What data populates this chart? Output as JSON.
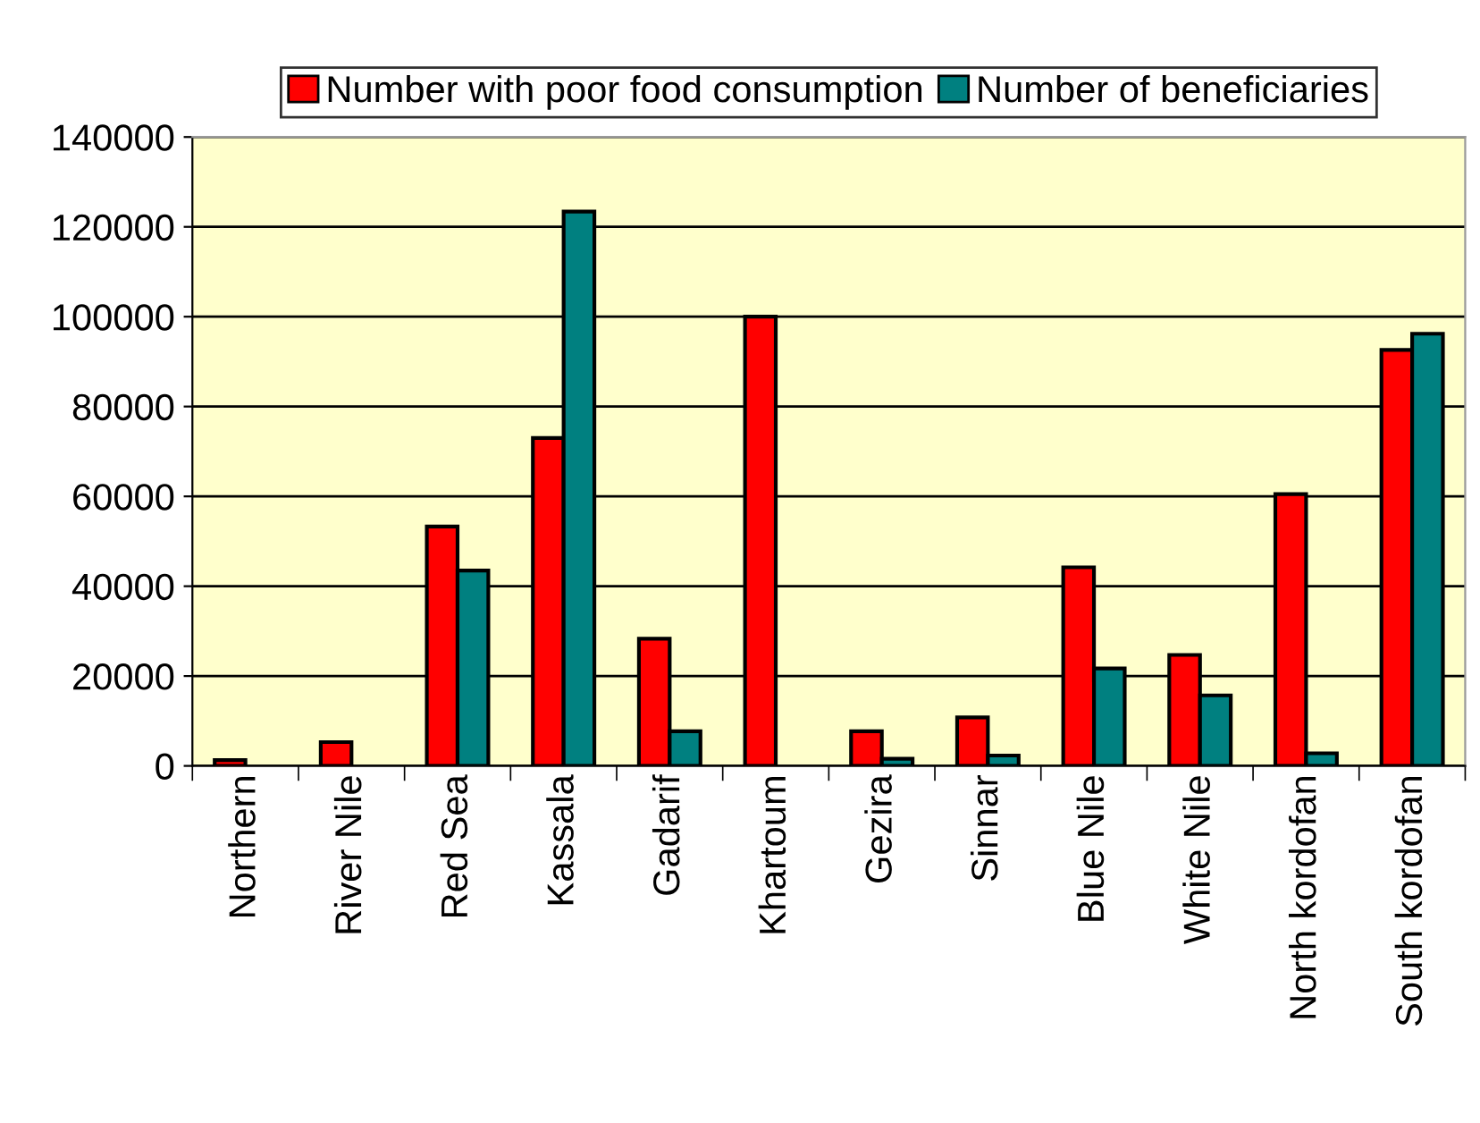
{
  "chart_data": {
    "type": "bar",
    "categories": [
      "Northern",
      "River Nile",
      "Red Sea",
      "Kassala",
      "Gadarif",
      "Khartoum",
      "Gezira",
      "Sinnar",
      "Blue Nile",
      "White Nile",
      "North kordofan",
      "South kordofan"
    ],
    "series": [
      {
        "name": "Number with poor food consumption",
        "color": "#ff0000",
        "values": [
          1300,
          5300,
          53300,
          73000,
          28300,
          100000,
          7700,
          10800,
          44200,
          24700,
          60500,
          92600
        ]
      },
      {
        "name": "Number of beneficiaries",
        "color": "#008080",
        "values": [
          null,
          null,
          43500,
          123400,
          7700,
          null,
          1600,
          2300,
          21700,
          15700,
          2800,
          96200
        ]
      }
    ],
    "ylim": [
      0,
      140000
    ],
    "yticks": [
      0,
      20000,
      40000,
      60000,
      80000,
      100000,
      120000,
      140000
    ],
    "grid": "y",
    "legend": "top"
  }
}
